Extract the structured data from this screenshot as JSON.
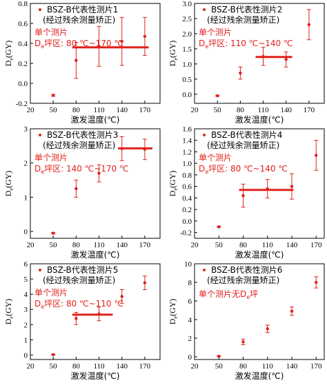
{
  "colors": {
    "accent": "#e0201b",
    "axis": "#000000"
  },
  "chart_data": [
    {
      "type": "scatter",
      "legend": "BSZ-B代表性测片1",
      "legend_sub": "(经过残余测量矫正)",
      "note_line1": "单个测片",
      "note_line2": "D",
      "note_sub": "e",
      "note_rest": "坪区: 80 ℃~170 ℃",
      "xlabel": "激发温度(℃)",
      "ylabel_main": "D",
      "ylabel_sub": "e",
      "ylabel_unit": "(GY)",
      "xlim": [
        20,
        190
      ],
      "ylim": [
        -0.2,
        0.8
      ],
      "x_ticks": [
        20,
        50,
        80,
        110,
        140,
        170
      ],
      "x_tick_labels": [
        "20",
        "50",
        "80",
        "110",
        "140",
        "170"
      ],
      "y_ticks": [
        -0.2,
        0.0,
        0.2,
        0.4,
        0.6,
        0.8
      ],
      "y_tick_labels": [
        "-0.2",
        "0.0",
        "0.2",
        "0.4",
        "0.6",
        "0.8"
      ],
      "points": [
        {
          "x": 50,
          "y": -0.12,
          "err": 0.01
        },
        {
          "x": 80,
          "y": 0.23,
          "err": 0.18
        },
        {
          "x": 110,
          "y": 0.37,
          "err": 0.2
        },
        {
          "x": 140,
          "y": 0.42,
          "err": 0.24
        },
        {
          "x": 170,
          "y": 0.47,
          "err": 0.19
        }
      ],
      "plateau": {
        "x_start": 75,
        "x_end": 175,
        "y": 0.36
      }
    },
    {
      "type": "scatter",
      "legend": "BSZ-B代表性测片2",
      "legend_sub": "(经过残余测量矫正)",
      "note_line1": "单个测片",
      "note_line2": "D",
      "note_sub": "e",
      "note_rest": "坪区: 110 ℃~140 ℃",
      "xlabel": "激发温度(℃)",
      "ylabel_main": "D",
      "ylabel_sub": "e",
      "ylabel_unit": "(GY)",
      "xlim": [
        20,
        190
      ],
      "ylim": [
        -0.3,
        3.0
      ],
      "x_ticks": [
        20,
        50,
        80,
        110,
        140,
        170
      ],
      "x_tick_labels": [
        "20",
        "50",
        "80",
        "110",
        "140",
        "170"
      ],
      "y_ticks": [
        0.0,
        0.5,
        1.0,
        1.5,
        2.0,
        2.5,
        3.0
      ],
      "y_tick_labels": [
        "0.0",
        "0.5",
        "1.0",
        "1.5",
        "2.0",
        "2.5",
        "3.0"
      ],
      "points": [
        {
          "x": 50,
          "y": -0.05,
          "err": 0.02
        },
        {
          "x": 80,
          "y": 0.7,
          "err": 0.2
        },
        {
          "x": 110,
          "y": 1.25,
          "err": 0.3
        },
        {
          "x": 140,
          "y": 1.15,
          "err": 0.25
        },
        {
          "x": 170,
          "y": 2.3,
          "err": 0.5
        }
      ],
      "plateau": {
        "x_start": 100,
        "x_end": 148,
        "y": 1.23
      }
    },
    {
      "type": "scatter",
      "legend": "BSZ-B代表性测片3",
      "legend_sub": "(经过残余测量矫正)",
      "note_line1": "单个测片",
      "note_line2": "D",
      "note_sub": "e",
      "note_rest": "坪区: 140 ℃~170 ℃",
      "xlabel": "激发温度(℃)",
      "ylabel_main": "D",
      "ylabel_sub": "e",
      "ylabel_unit": "(GY)",
      "xlim": [
        20,
        190
      ],
      "ylim": [
        -0.2,
        3.0
      ],
      "x_ticks": [
        20,
        50,
        80,
        110,
        140,
        170
      ],
      "x_tick_labels": [
        "20",
        "50",
        "80",
        "110",
        "140",
        "170"
      ],
      "y_ticks": [
        0,
        1,
        2,
        3
      ],
      "y_tick_labels": [
        "0",
        "1",
        "2",
        "3"
      ],
      "points": [
        {
          "x": 50,
          "y": -0.05,
          "err": 0.02
        },
        {
          "x": 80,
          "y": 1.25,
          "err": 0.25
        },
        {
          "x": 110,
          "y": 1.7,
          "err": 0.25
        },
        {
          "x": 140,
          "y": 2.42,
          "err": 0.35
        },
        {
          "x": 170,
          "y": 2.4,
          "err": 0.3
        }
      ],
      "plateau": {
        "x_start": 135,
        "x_end": 180,
        "y": 2.43
      }
    },
    {
      "type": "scatter",
      "legend": "BSZ-B代表性测片4",
      "legend_sub": "(经过残余测量矫正)",
      "note_line1": "单个测片",
      "note_line2": "D",
      "note_sub": "e",
      "note_rest": "坪区: 80 ℃~140 ℃",
      "xlabel": "激发温度(℃)",
      "ylabel_main": "D",
      "ylabel_sub": "e",
      "ylabel_unit": "(GY)",
      "xlim": [
        20,
        180
      ],
      "ylim": [
        -0.3,
        1.6
      ],
      "x_ticks": [
        20,
        50,
        80,
        110,
        140,
        170
      ],
      "x_tick_labels": [
        "20",
        "50",
        "80",
        "110",
        "140",
        "170"
      ],
      "y_ticks": [
        -0.2,
        0.0,
        0.2,
        0.4,
        0.6,
        0.8,
        1.0,
        1.2,
        1.4,
        1.6
      ],
      "y_tick_labels": [
        "-0.2",
        "0.0",
        "0.2",
        "0.4",
        "0.6",
        "0.8",
        "1.0",
        "1.2",
        "1.4",
        "1.6"
      ],
      "points": [
        {
          "x": 50,
          "y": -0.1,
          "err": 0.01
        },
        {
          "x": 80,
          "y": 0.44,
          "err": 0.2
        },
        {
          "x": 110,
          "y": 0.56,
          "err": 0.16
        },
        {
          "x": 140,
          "y": 0.6,
          "err": 0.22
        },
        {
          "x": 170,
          "y": 1.14,
          "err": 0.26
        }
      ],
      "plateau": {
        "x_start": 75,
        "x_end": 142,
        "y": 0.54
      }
    },
    {
      "type": "scatter",
      "legend": "BSZ-B代表性测片5",
      "legend_sub": "(经过残余测量矫正)",
      "note_line1": "单个测片",
      "note_line2": "D",
      "note_sub": "e",
      "note_rest": "坪区: 80 ℃~110 ℃",
      "xlabel": "激发温度(℃)",
      "ylabel_main": "D",
      "ylabel_sub": "e",
      "ylabel_unit": "(GY)",
      "xlim": [
        20,
        190
      ],
      "ylim": [
        -0.3,
        6.0
      ],
      "x_ticks": [
        20,
        50,
        80,
        110,
        140,
        170
      ],
      "x_tick_labels": [
        "20",
        "50",
        "80",
        "110",
        "140",
        "170"
      ],
      "y_ticks": [
        0,
        1,
        2,
        3,
        4,
        5,
        6
      ],
      "y_tick_labels": [
        "0",
        "1",
        "2",
        "3",
        "4",
        "5",
        "6"
      ],
      "points": [
        {
          "x": 50,
          "y": 0.02,
          "err": 0.03
        },
        {
          "x": 80,
          "y": 2.4,
          "err": 0.4
        },
        {
          "x": 110,
          "y": 2.7,
          "err": 0.45
        },
        {
          "x": 140,
          "y": 3.85,
          "err": 0.45
        },
        {
          "x": 170,
          "y": 4.75,
          "err": 0.45
        }
      ],
      "plateau": {
        "x_start": 75,
        "x_end": 128,
        "y": 2.65
      }
    },
    {
      "type": "scatter",
      "legend": "BSZ-B代表性测片6",
      "legend_sub": "(经过残余测量矫正)",
      "note_line1": "单个测片无D",
      "note_line2": "",
      "note_sub": "e",
      "note_rest": "坪",
      "xlabel": "激发温度(℃)",
      "ylabel_main": "D",
      "ylabel_sub": "e",
      "ylabel_unit": "(GY)",
      "xlim": [
        20,
        180
      ],
      "ylim": [
        -0.3,
        10.0
      ],
      "x_ticks": [
        20,
        50,
        80,
        110,
        140,
        170
      ],
      "x_tick_labels": [
        "20",
        "50",
        "80",
        "110",
        "140",
        "170"
      ],
      "y_ticks": [
        0,
        2,
        4,
        6,
        8,
        10
      ],
      "y_tick_labels": [
        "0",
        "2",
        "4",
        "6",
        "8",
        "10"
      ],
      "points": [
        {
          "x": 50,
          "y": 0.05,
          "err": 0.05
        },
        {
          "x": 80,
          "y": 1.6,
          "err": 0.3
        },
        {
          "x": 110,
          "y": 3.0,
          "err": 0.4
        },
        {
          "x": 140,
          "y": 4.9,
          "err": 0.45
        },
        {
          "x": 170,
          "y": 8.0,
          "err": 0.6
        }
      ],
      "plateau": null
    }
  ]
}
